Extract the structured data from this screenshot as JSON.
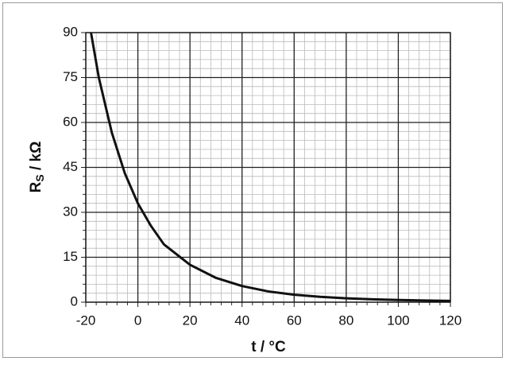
{
  "chart_data": {
    "type": "line",
    "xlabel": "t / °C",
    "ylabel_parts": [
      "R",
      "S",
      " / kΩ"
    ],
    "x": [
      -18,
      -15,
      -10,
      -5,
      0,
      5,
      10,
      20,
      30,
      40,
      50,
      60,
      70,
      80,
      90,
      100,
      110,
      120
    ],
    "series": [
      {
        "color": "#111111",
        "values": [
          90,
          75,
          56.6,
          43,
          33,
          25.5,
          19.3,
          12.5,
          8.1,
          5.4,
          3.6,
          2.5,
          1.8,
          1.3,
          0.97,
          0.73,
          0.56,
          0.43
        ]
      }
    ],
    "xlim": [
      -20,
      120
    ],
    "xticks": [
      -20,
      0,
      20,
      40,
      60,
      80,
      100,
      120
    ],
    "ylim": [
      0,
      90
    ],
    "yticks": [
      0,
      15,
      30,
      45,
      60,
      75,
      90
    ],
    "grid": true
  }
}
